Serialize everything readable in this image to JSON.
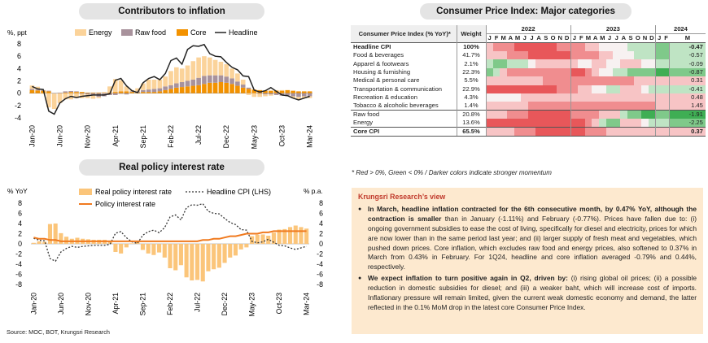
{
  "chart1": {
    "title": "Contributors to inflation",
    "unit": "%, ppt",
    "legend": [
      "Energy",
      "Raw food",
      "Core",
      "Headline"
    ],
    "colors": {
      "energy": "#fbd39a",
      "rawfood": "#a8929c",
      "core": "#f39200",
      "headline": "#222222"
    }
  },
  "chart2": {
    "title": "Real policy interest rate",
    "unit_left": "% YoY",
    "unit_right": "% p.a.",
    "legend": [
      "Real policy interest rate",
      "Headline CPI (LHS)",
      "Policy interest rate"
    ],
    "colors": {
      "real": "#fbc57a",
      "headline": "#333333",
      "policy": "#f07a1f"
    }
  },
  "chart_data": [
    {
      "type": "bar",
      "title": "Contributors to inflation",
      "ylabel": "%, ppt",
      "ylim": [
        -4,
        8
      ],
      "yticks": [
        -4,
        -2,
        0,
        2,
        4,
        6,
        8
      ],
      "x_tick_labels": [
        "Jan-20",
        "Jun-20",
        "Nov-20",
        "Apr-21",
        "Sep-21",
        "Feb-22",
        "Jul-22",
        "Dec-22",
        "May-23",
        "Oct-23",
        "Mar-24"
      ],
      "x_tick_index": [
        0,
        5,
        10,
        15,
        20,
        25,
        30,
        35,
        40,
        45,
        50
      ],
      "series": [
        {
          "name": "Energy",
          "values": [
            0.55,
            0.45,
            -0.1,
            -2.3,
            -2.5,
            -1.6,
            -1.0,
            -1.0,
            -0.8,
            -0.7,
            -0.6,
            -0.5,
            -0.2,
            0.2,
            1.0,
            2.1,
            1.8,
            0.8,
            0.2,
            0.5,
            1.1,
            1.6,
            1.5,
            1.4,
            1.6,
            2.3,
            2.6,
            2.2,
            2.5,
            3.0,
            3.3,
            3.2,
            2.9,
            2.5,
            2.2,
            2.0,
            1.6,
            1.3,
            0.8,
            -0.3,
            -0.6,
            -0.5,
            -0.3,
            -0.2,
            0.1,
            0.1,
            -0.1,
            -0.3,
            -0.4,
            -0.3,
            -0.3
          ]
        },
        {
          "name": "Raw food",
          "values": [
            0.2,
            0.15,
            0.1,
            0.1,
            -0.05,
            0.1,
            0.2,
            0.15,
            0.1,
            -0.1,
            -0.2,
            -0.4,
            -0.6,
            -0.5,
            -0.3,
            -0.3,
            -0.1,
            -0.2,
            0.1,
            0.2,
            0.3,
            0.4,
            0.5,
            0.5,
            0.6,
            0.6,
            0.7,
            0.8,
            0.9,
            1.0,
            1.2,
            1.3,
            1.2,
            1.2,
            1.1,
            1.0,
            0.9,
            0.7,
            0.5,
            0.2,
            0.0,
            -0.1,
            -0.2,
            -0.2,
            -0.3,
            -0.4,
            -0.4,
            -0.5,
            -0.6,
            -0.5,
            -0.5
          ]
        },
        {
          "name": "Core",
          "values": [
            0.5,
            0.45,
            0.4,
            0.3,
            0.0,
            0.0,
            0.1,
            0.2,
            0.2,
            0.2,
            0.1,
            0.1,
            0.1,
            0.0,
            0.1,
            0.2,
            0.3,
            0.3,
            0.2,
            0.1,
            0.2,
            0.2,
            0.2,
            0.3,
            0.5,
            0.7,
            0.9,
            1.0,
            1.1,
            1.2,
            1.3,
            1.5,
            1.7,
            1.7,
            1.8,
            1.7,
            1.5,
            1.2,
            0.9,
            0.7,
            0.6,
            0.5,
            0.4,
            0.4,
            0.4,
            0.4,
            0.5,
            0.4,
            0.3,
            0.3,
            0.3
          ]
        },
        {
          "name": "Headline",
          "values": [
            1.1,
            0.7,
            0.6,
            -2.9,
            -3.4,
            -1.6,
            -0.9,
            -0.5,
            -0.7,
            -0.5,
            -0.4,
            -0.3,
            -0.3,
            -0.3,
            -0.1,
            2.1,
            2.4,
            1.2,
            0.4,
            0.1,
            1.7,
            2.4,
            2.7,
            2.2,
            3.2,
            5.3,
            5.7,
            4.7,
            7.1,
            7.7,
            7.6,
            7.9,
            6.4,
            6.0,
            5.9,
            5.0,
            4.2,
            3.8,
            2.8,
            2.7,
            0.5,
            0.2,
            0.4,
            0.9,
            0.3,
            -0.3,
            -0.4,
            -0.8,
            -1.1,
            -0.8,
            -0.5
          ]
        }
      ]
    },
    {
      "type": "bar",
      "title": "Real policy interest rate",
      "ylabel": "% YoY",
      "y2label": "% p.a.",
      "ylim": [
        -8,
        8
      ],
      "yticks": [
        -8,
        -6,
        -4,
        -2,
        0,
        2,
        4,
        6,
        8
      ],
      "x_tick_labels": [
        "Jan-20",
        "Jun-20",
        "Nov-20",
        "Apr-21",
        "Sep-21",
        "Feb-22",
        "Jul-22",
        "Dec-22",
        "May-23",
        "Oct-23",
        "Mar-24"
      ],
      "x_tick_index": [
        0,
        5,
        10,
        15,
        20,
        25,
        30,
        35,
        40,
        45,
        50
      ],
      "series": [
        {
          "name": "Real policy interest rate",
          "values": [
            0.2,
            0.5,
            0.4,
            3.9,
            4.0,
            2.1,
            1.4,
            1.0,
            1.2,
            1.0,
            0.9,
            0.8,
            0.8,
            0.8,
            0.6,
            -1.6,
            -1.9,
            -0.7,
            0.1,
            0.4,
            -1.2,
            -1.9,
            -2.2,
            -1.7,
            -2.7,
            -4.8,
            -5.2,
            -4.2,
            -6.6,
            -7.2,
            -7.1,
            -7.4,
            -5.4,
            -5.0,
            -4.7,
            -3.75,
            -2.7,
            -2.3,
            -1.1,
            -0.7,
            1.5,
            1.8,
            1.85,
            1.6,
            2.2,
            2.8,
            2.9,
            3.3,
            3.6,
            3.3,
            3.0
          ]
        },
        {
          "name": "Headline CPI (LHS)",
          "values": [
            1.1,
            0.7,
            0.6,
            -2.9,
            -3.4,
            -1.6,
            -0.9,
            -0.5,
            -0.7,
            -0.5,
            -0.4,
            -0.3,
            -0.3,
            -0.3,
            -0.1,
            2.1,
            2.4,
            1.2,
            0.4,
            0.1,
            1.7,
            2.4,
            2.7,
            2.2,
            3.2,
            5.3,
            5.7,
            4.7,
            7.1,
            7.7,
            7.6,
            7.9,
            6.4,
            6.0,
            5.9,
            5.0,
            4.2,
            3.8,
            2.8,
            2.7,
            0.5,
            0.2,
            0.4,
            0.9,
            0.3,
            -0.3,
            -0.4,
            -0.8,
            -1.1,
            -0.8,
            -0.5
          ]
        },
        {
          "name": "Policy interest rate",
          "values": [
            1.25,
            1.0,
            1.0,
            0.75,
            0.75,
            0.5,
            0.5,
            0.5,
            0.5,
            0.5,
            0.5,
            0.5,
            0.5,
            0.5,
            0.5,
            0.5,
            0.5,
            0.5,
            0.5,
            0.5,
            0.5,
            0.5,
            0.5,
            0.5,
            0.5,
            0.5,
            0.5,
            0.5,
            0.5,
            0.5,
            0.5,
            0.75,
            0.75,
            1.0,
            1.0,
            1.25,
            1.5,
            1.5,
            1.75,
            2.0,
            2.0,
            2.0,
            2.25,
            2.25,
            2.5,
            2.5,
            2.5,
            2.5,
            2.5,
            2.5,
            2.5
          ]
        }
      ]
    },
    {
      "type": "heatmap",
      "title": "Consumer Price Index: Major categories",
      "header": {
        "category": "Consumer Price Index (% YoY)*",
        "weight": "Weight",
        "years": [
          "2022",
          "2023",
          "2024"
        ],
        "months": [
          "J",
          "F",
          "M",
          "A",
          "M",
          "J",
          "J",
          "A",
          "S",
          "O",
          "N",
          "D"
        ],
        "months_2024": [
          "J",
          "F",
          "M"
        ]
      },
      "rows": [
        {
          "name": "Headline CPI",
          "weight": "100%",
          "last": "-0.47",
          "bold": true,
          "heat": [
            1,
            2,
            2,
            2,
            3,
            3,
            3,
            3,
            3,
            3,
            2,
            2,
            2,
            2,
            1,
            1,
            0,
            0,
            0,
            0,
            -1,
            -1,
            -1,
            -1,
            -2,
            -2,
            -1
          ]
        },
        {
          "name": "Food & beverages",
          "weight": "41.7%",
          "last": "-0.57",
          "heat": [
            1,
            1,
            1,
            2,
            2,
            2,
            3,
            3,
            3,
            3,
            3,
            3,
            2,
            2,
            2,
            2,
            1,
            1,
            0,
            0,
            0,
            -1,
            -1,
            -1,
            -2,
            -2,
            -1
          ]
        },
        {
          "name": "Apparel & footwears",
          "weight": "2.1%",
          "last": "-0.09",
          "heat": [
            -1,
            -2,
            -2,
            -1,
            -1,
            -1,
            0,
            1,
            1,
            1,
            1,
            1,
            1,
            0,
            0,
            1,
            1,
            0,
            0,
            1,
            1,
            1,
            0,
            0,
            -1,
            -1,
            -1
          ]
        },
        {
          "name": "Housing & furnishing",
          "weight": "22.3%",
          "last": "-0.87",
          "heat": [
            -2,
            -1,
            1,
            2,
            2,
            2,
            2,
            2,
            2,
            2,
            2,
            2,
            3,
            3,
            2,
            1,
            0,
            0,
            -1,
            -1,
            -2,
            -2,
            -2,
            -2,
            -3,
            -3,
            -2
          ]
        },
        {
          "name": "Medical & personal care",
          "weight": "5.5%",
          "last": "0.31",
          "heat": [
            1,
            1,
            1,
            1,
            1,
            1,
            1,
            1,
            2,
            2,
            2,
            2,
            2,
            2,
            2,
            2,
            2,
            2,
            2,
            2,
            2,
            1,
            1,
            1,
            1,
            1,
            1
          ]
        },
        {
          "name": "Transportation & communication",
          "weight": "22.9%",
          "last": "-0.41",
          "heat": [
            3,
            3,
            3,
            3,
            3,
            3,
            3,
            3,
            3,
            3,
            2,
            2,
            2,
            1,
            1,
            0,
            0,
            -1,
            -1,
            1,
            1,
            1,
            0,
            -1,
            -1,
            -1,
            -1
          ]
        },
        {
          "name": "Recreation & education",
          "weight": "4.3%",
          "last": "0.48",
          "heat": [
            0,
            0,
            0,
            0,
            0,
            1,
            1,
            1,
            1,
            1,
            1,
            1,
            1,
            1,
            1,
            1,
            1,
            1,
            1,
            1,
            1,
            1,
            1,
            1,
            1,
            1,
            1
          ]
        },
        {
          "name": "Tobacco & alcoholic beverages",
          "weight": "1.4%",
          "last": "1.45",
          "heat": [
            1,
            1,
            1,
            1,
            1,
            1,
            2,
            2,
            2,
            2,
            2,
            2,
            2,
            2,
            2,
            2,
            2,
            2,
            2,
            2,
            2,
            2,
            2,
            2,
            1,
            1,
            1
          ]
        },
        {
          "name": "Raw food",
          "weight": "20.8%",
          "last": "-1.91",
          "heat": [
            1,
            1,
            1,
            2,
            2,
            2,
            3,
            3,
            3,
            3,
            3,
            3,
            2,
            2,
            2,
            2,
            1,
            1,
            1,
            -1,
            -2,
            -2,
            -3,
            -3,
            -2,
            -2,
            -3
          ]
        },
        {
          "name": "Energy",
          "weight": "13.6%",
          "last": "-2.25",
          "heat": [
            3,
            3,
            3,
            3,
            3,
            3,
            3,
            3,
            3,
            3,
            3,
            3,
            3,
            3,
            2,
            1,
            -1,
            -2,
            -2,
            1,
            1,
            1,
            0,
            -1,
            -1,
            -1,
            -2
          ]
        },
        {
          "name": "Core CPI",
          "weight": "65.5%",
          "last": "0.37",
          "bold": true,
          "heat": [
            1,
            1,
            1,
            1,
            2,
            2,
            2,
            3,
            3,
            3,
            3,
            3,
            3,
            3,
            2,
            2,
            2,
            1,
            1,
            1,
            1,
            1,
            1,
            1,
            1,
            1,
            1
          ]
        }
      ],
      "note": "* Red > 0%, Green < 0% / Darker colors indicate stronger momentum"
    }
  ],
  "view": {
    "title": "Krungsri Research’s view",
    "p1_bold": "In March, headline inflation contracted for the 6th consecutive month, by 0.47% YoY, although the contraction is smaller",
    "p1_rest": " than in January (-1.11%) and February (-0.77%). Prices have fallen due to: (i) ongoing government subsidies to ease the cost of living, specifically for diesel and electricity, prices for which are now lower than in the same period last year; and (ii) larger supply of fresh meat and vegetables, which pushed down prices. Core inflation, which excludes raw food and energy prices, also softened to 0.37% in March from 0.43% in February. For 1Q24, headline and core inflation averaged -0.79% and 0.44%, respectively.",
    "p2_bold": "We expect inflation to turn positive again in Q2, driven by:",
    "p2_rest": " (i) rising global oil prices; (ii) a possible reduction in domestic subsidies for diesel; and (iii) a weaker baht, which will increase cost of imports. Inflationary pressure will remain limited, given the current weak domestic economy and demand, the latter reflected in the 0.1% MoM drop in the latest core Consumer Price Index."
  },
  "source": "Source:  MOC, BOT, Krungsri Research"
}
